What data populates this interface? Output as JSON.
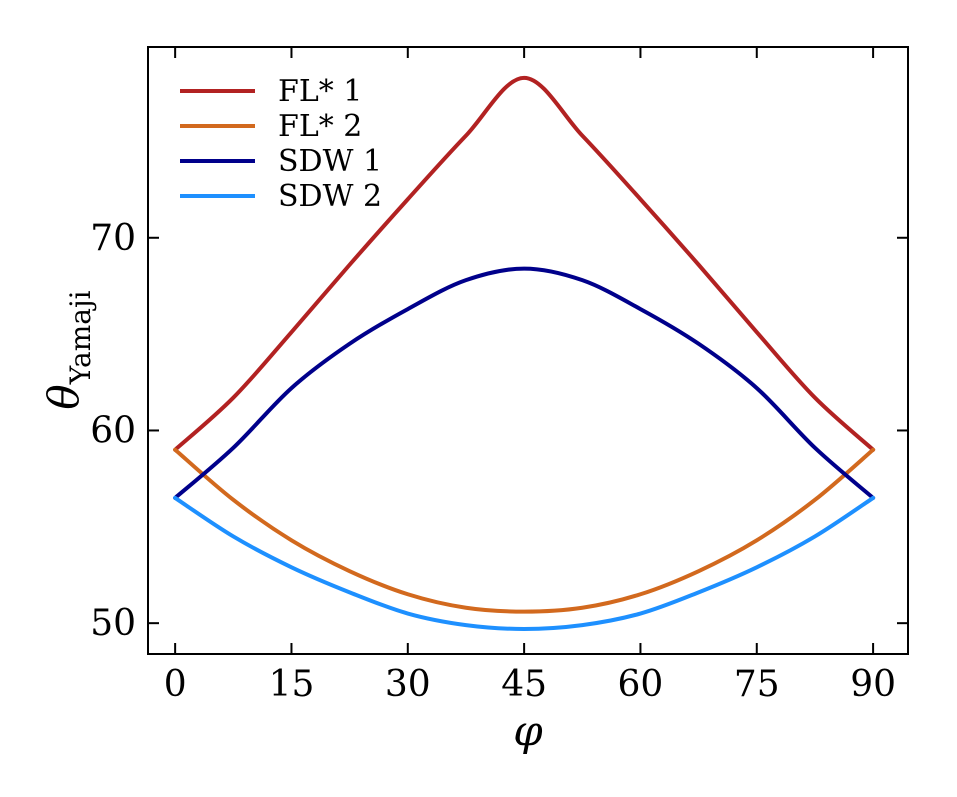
{
  "chart_data": {
    "type": "line",
    "xlabel": "φ",
    "ylabel": "θ",
    "ylabel_sub": "Yamaji",
    "xlim": [
      -3.5,
      94.5
    ],
    "ylim": [
      48.4,
      79.9
    ],
    "xticks": [
      0,
      15,
      30,
      45,
      60,
      75,
      90
    ],
    "yticks": [
      50,
      60,
      70
    ],
    "grid": false,
    "legend_position": "top-left",
    "series": [
      {
        "name": "FL* 1",
        "color": "#b22222",
        "x": [
          0,
          7.5,
          15,
          22.5,
          30,
          37.5,
          45,
          52.5,
          60,
          67.5,
          75,
          82.5,
          90
        ],
        "values": [
          59.0,
          61.7,
          65.1,
          68.6,
          72.0,
          75.3,
          78.3,
          75.3,
          72.0,
          68.6,
          65.1,
          61.7,
          59.0
        ]
      },
      {
        "name": "FL* 2",
        "color": "#d2691e",
        "x": [
          0,
          7.5,
          15,
          22.5,
          30,
          37.5,
          45,
          52.5,
          60,
          67.5,
          75,
          82.5,
          90
        ],
        "values": [
          59.0,
          56.4,
          54.3,
          52.7,
          51.5,
          50.8,
          50.6,
          50.8,
          51.5,
          52.7,
          54.3,
          56.4,
          59.0
        ]
      },
      {
        "name": "SDW 1",
        "color": "#00008b",
        "x": [
          0,
          7.5,
          15,
          22.5,
          30,
          37.5,
          45,
          52.5,
          60,
          67.5,
          75,
          82.5,
          90
        ],
        "values": [
          56.5,
          59.1,
          62.2,
          64.5,
          66.3,
          67.8,
          68.4,
          67.8,
          66.3,
          64.5,
          62.2,
          59.1,
          56.5
        ]
      },
      {
        "name": "SDW 2",
        "color": "#1e90ff",
        "x": [
          0,
          7.5,
          15,
          22.5,
          30,
          37.5,
          45,
          52.5,
          60,
          67.5,
          75,
          82.5,
          90
        ],
        "values": [
          56.5,
          54.5,
          52.9,
          51.6,
          50.5,
          49.9,
          49.7,
          49.9,
          50.5,
          51.6,
          52.9,
          54.5,
          56.5
        ]
      }
    ]
  }
}
